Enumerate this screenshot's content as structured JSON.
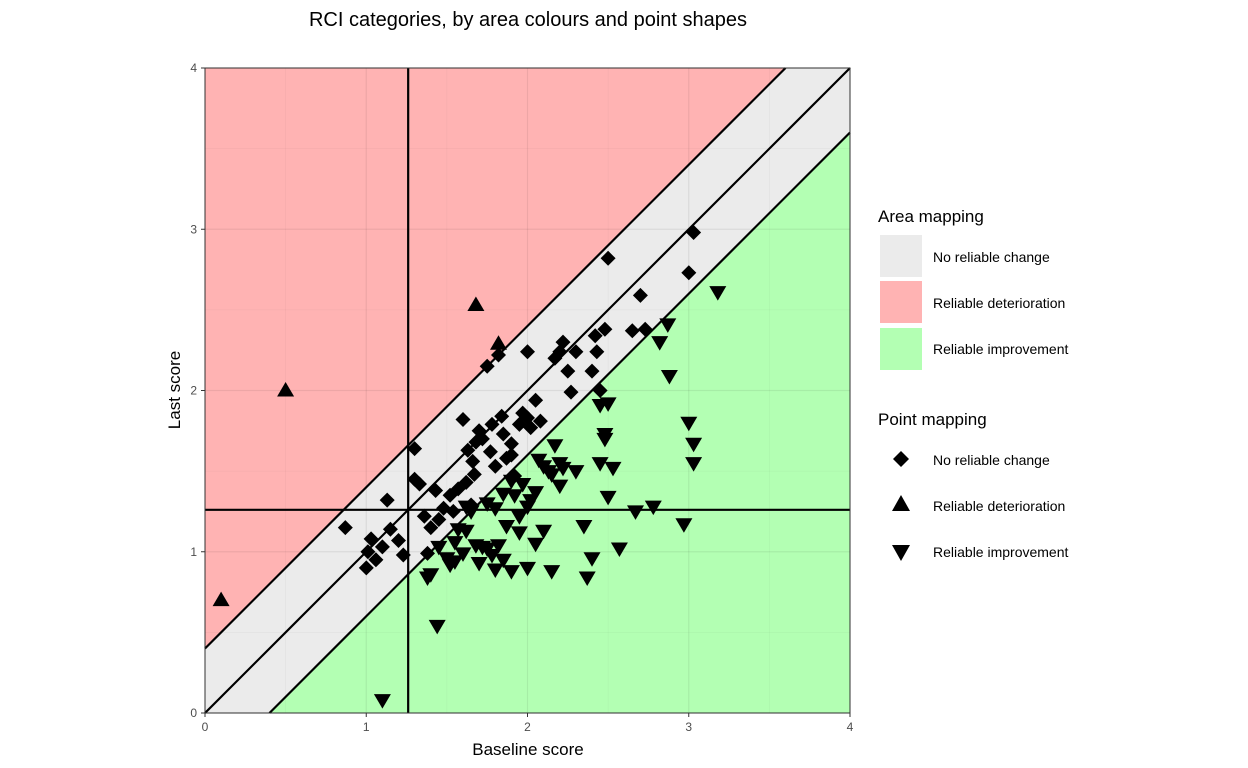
{
  "chart_data": {
    "type": "scatter",
    "title": "RCI categories, by area colours and point shapes",
    "xlabel": "Baseline score",
    "ylabel": "Last score",
    "xlim": [
      0,
      4
    ],
    "ylim": [
      0,
      4
    ],
    "x_ticks": [
      0,
      1,
      2,
      3,
      4
    ],
    "y_ticks": [
      0,
      1,
      2,
      3,
      4
    ],
    "x_tick_labels": [
      "0",
      "1",
      "2",
      "3",
      "4"
    ],
    "y_tick_labels": [
      "0",
      "1",
      "2",
      "3",
      "4"
    ],
    "grid": true,
    "rci_band": 0.4,
    "cutoff_x": 1.26,
    "cutoff_y": 1.26,
    "colors": {
      "no_change": "#ebebeb",
      "deterioration": "#ffb3b3",
      "improvement": "#b3ffb3",
      "points": "#000000"
    },
    "legend": {
      "placement": "right",
      "area": {
        "title": "Area mapping",
        "items": [
          "No reliable change",
          "Reliable deterioration",
          "Reliable improvement"
        ]
      },
      "points": {
        "title": "Point mapping",
        "items": [
          "No reliable change",
          "Reliable deterioration",
          "Reliable improvement"
        ],
        "shapes": [
          "diamond",
          "triangle-up",
          "triangle-down"
        ]
      }
    },
    "series": [
      {
        "name": "No reliable change",
        "shape": "diamond",
        "points": [
          [
            0.87,
            1.15
          ],
          [
            1.0,
            0.9
          ],
          [
            1.01,
            1.0
          ],
          [
            1.03,
            1.08
          ],
          [
            1.06,
            0.95
          ],
          [
            1.1,
            1.03
          ],
          [
            1.13,
            1.32
          ],
          [
            1.15,
            1.14
          ],
          [
            1.2,
            1.07
          ],
          [
            1.23,
            0.98
          ],
          [
            1.3,
            1.64
          ],
          [
            1.3,
            1.45
          ],
          [
            1.33,
            1.42
          ],
          [
            1.36,
            1.22
          ],
          [
            1.38,
            0.99
          ],
          [
            1.4,
            1.15
          ],
          [
            1.43,
            1.38
          ],
          [
            1.45,
            1.2
          ],
          [
            1.48,
            1.27
          ],
          [
            1.52,
            1.35
          ],
          [
            1.54,
            1.25
          ],
          [
            1.57,
            1.39
          ],
          [
            1.6,
            1.82
          ],
          [
            1.62,
            1.43
          ],
          [
            1.63,
            1.63
          ],
          [
            1.65,
            1.29
          ],
          [
            1.66,
            1.56
          ],
          [
            1.67,
            1.48
          ],
          [
            1.68,
            1.68
          ],
          [
            1.7,
            1.75
          ],
          [
            1.72,
            1.7
          ],
          [
            1.75,
            2.15
          ],
          [
            1.77,
            1.62
          ],
          [
            1.78,
            1.79
          ],
          [
            1.8,
            1.53
          ],
          [
            1.82,
            2.22
          ],
          [
            1.84,
            1.84
          ],
          [
            1.85,
            1.73
          ],
          [
            1.87,
            1.58
          ],
          [
            1.9,
            1.67
          ],
          [
            1.92,
            1.47
          ],
          [
            1.95,
            1.79
          ],
          [
            1.97,
            1.86
          ],
          [
            2.0,
            2.24
          ],
          [
            2.02,
            1.77
          ],
          [
            2.05,
            1.94
          ],
          [
            2.08,
            1.81
          ],
          [
            2.17,
            2.2
          ],
          [
            2.2,
            2.24
          ],
          [
            2.22,
            2.3
          ],
          [
            2.25,
            2.12
          ],
          [
            2.27,
            1.99
          ],
          [
            2.3,
            2.24
          ],
          [
            2.4,
            2.12
          ],
          [
            2.43,
            2.24
          ],
          [
            2.45,
            2.0
          ],
          [
            2.48,
            2.38
          ],
          [
            2.5,
            2.82
          ],
          [
            2.65,
            2.37
          ],
          [
            2.7,
            2.59
          ],
          [
            2.73,
            2.38
          ],
          [
            3.0,
            2.73
          ],
          [
            3.03,
            2.98
          ],
          [
            2.42,
            2.34
          ],
          [
            1.9,
            1.6
          ],
          [
            2.0,
            1.83
          ]
        ]
      },
      {
        "name": "Reliable deterioration",
        "shape": "triangle-up",
        "points": [
          [
            0.1,
            0.7
          ],
          [
            0.5,
            2.0
          ],
          [
            1.68,
            2.53
          ],
          [
            1.82,
            2.29
          ]
        ]
      },
      {
        "name": "Reliable improvement",
        "shape": "triangle-down",
        "points": [
          [
            1.1,
            0.08
          ],
          [
            1.38,
            0.84
          ],
          [
            1.44,
            0.54
          ],
          [
            1.45,
            1.03
          ],
          [
            1.5,
            0.96
          ],
          [
            1.52,
            0.92
          ],
          [
            1.55,
            1.06
          ],
          [
            1.57,
            1.14
          ],
          [
            1.6,
            0.99
          ],
          [
            1.62,
            1.13
          ],
          [
            1.65,
            1.25
          ],
          [
            1.68,
            1.04
          ],
          [
            1.7,
            0.93
          ],
          [
            1.72,
            1.03
          ],
          [
            1.75,
            1.3
          ],
          [
            1.78,
            0.98
          ],
          [
            1.8,
            0.89
          ],
          [
            1.82,
            1.04
          ],
          [
            1.85,
            0.95
          ],
          [
            1.87,
            1.16
          ],
          [
            1.9,
            0.88
          ],
          [
            1.92,
            1.35
          ],
          [
            1.95,
            1.12
          ],
          [
            1.97,
            1.42
          ],
          [
            2.0,
            0.9
          ],
          [
            2.02,
            1.32
          ],
          [
            2.05,
            1.05
          ],
          [
            2.07,
            1.57
          ],
          [
            2.1,
            1.13
          ],
          [
            2.13,
            1.5
          ],
          [
            2.15,
            0.88
          ],
          [
            2.17,
            1.66
          ],
          [
            2.2,
            1.41
          ],
          [
            2.22,
            1.52
          ],
          [
            2.3,
            1.5
          ],
          [
            2.35,
            1.16
          ],
          [
            2.37,
            0.84
          ],
          [
            2.4,
            0.96
          ],
          [
            2.45,
            1.91
          ],
          [
            2.48,
            1.73
          ],
          [
            2.5,
            1.34
          ],
          [
            2.53,
            1.52
          ],
          [
            2.57,
            1.02
          ],
          [
            2.67,
            1.25
          ],
          [
            2.78,
            1.28
          ],
          [
            2.82,
            2.3
          ],
          [
            2.87,
            2.41
          ],
          [
            2.88,
            2.09
          ],
          [
            2.97,
            1.17
          ],
          [
            3.0,
            1.8
          ],
          [
            3.03,
            1.55
          ],
          [
            3.03,
            1.67
          ],
          [
            3.18,
            2.61
          ],
          [
            2.5,
            1.92
          ],
          [
            2.48,
            1.7
          ],
          [
            2.45,
            1.55
          ],
          [
            2.2,
            1.55
          ],
          [
            2.1,
            1.53
          ],
          [
            1.95,
            1.22
          ],
          [
            1.85,
            1.36
          ],
          [
            1.9,
            1.44
          ],
          [
            2.05,
            1.37
          ],
          [
            2.15,
            1.48
          ],
          [
            2.0,
            1.28
          ],
          [
            1.75,
            1.02
          ],
          [
            1.62,
            1.28
          ],
          [
            1.55,
            0.94
          ],
          [
            1.4,
            0.86
          ],
          [
            1.8,
            1.27
          ]
        ]
      }
    ]
  }
}
